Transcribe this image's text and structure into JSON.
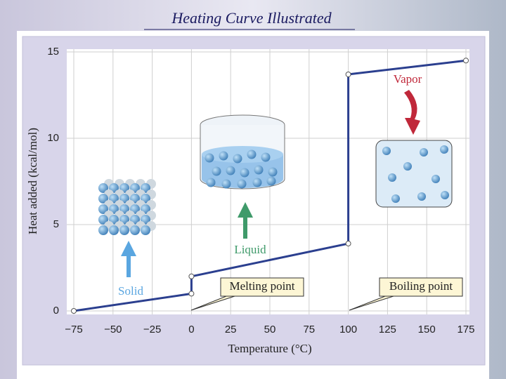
{
  "chart_data": {
    "type": "line",
    "title": "Heating Curve Illustrated",
    "x_label": "Temperature (°C)",
    "y_label": "Heat added (kcal/mol)",
    "x": [
      -75,
      0,
      0,
      100,
      100,
      175
    ],
    "series": [
      {
        "color": "#2b3f8f",
        "values": [
          0,
          1.0,
          2.0,
          3.9,
          13.7,
          14.5
        ]
      }
    ],
    "xlim": [
      -75,
      175
    ],
    "ylim": [
      0,
      15
    ],
    "xticks": [
      {
        "value": -75,
        "label": "−75"
      },
      {
        "value": -50,
        "label": "−50"
      },
      {
        "value": -25,
        "label": "−25"
      },
      0,
      25,
      50,
      75,
      100,
      125,
      150,
      175
    ],
    "yticks": [
      0,
      5,
      10,
      15
    ],
    "grid": true,
    "annotations": [
      "Solid",
      "Liquid",
      "Vapor",
      "Melting point",
      "Boiling point"
    ]
  }
}
